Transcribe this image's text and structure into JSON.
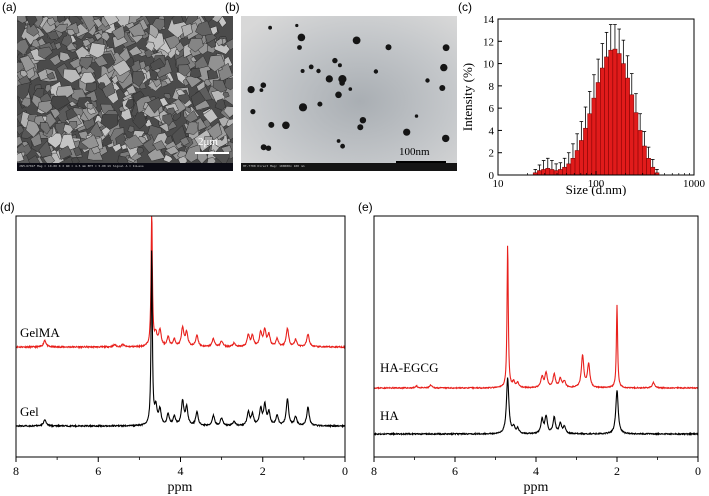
{
  "panels": {
    "a": {
      "label": "(a)",
      "scalebar": "2μm"
    },
    "b": {
      "label": "(b)",
      "scalebar": "100nm"
    },
    "c": {
      "label": "(c)"
    },
    "d": {
      "label": "(d)"
    },
    "e": {
      "label": "(e)"
    }
  },
  "sem_info": {
    "text": "JSM-6701F  Mag = 10.00 K X  WD = 4.5 mm  EHT = 5.00 kV  Signal A = InLens"
  },
  "tem_info": {
    "text": "HT-7700  Direct Mag: 100000x  100 nm"
  },
  "colors": {
    "red": "#e8201c",
    "black": "#000000",
    "bar_fill": "#e11b1b"
  },
  "chart_data": [
    {
      "panel": "c",
      "type": "bar",
      "title": "",
      "xlabel": "Size (d.nm)",
      "ylabel": "Intensity (%)",
      "xscale": "log",
      "xlim": [
        10,
        1000
      ],
      "ylim": [
        0,
        14
      ],
      "x_ticks": [
        "10",
        "100",
        "1000"
      ],
      "y_ticks": [
        "0",
        "2",
        "4",
        "6",
        "8",
        "10",
        "12",
        "14"
      ],
      "x": [
        24,
        26.5,
        29.2,
        32.2,
        35.5,
        39.2,
        43.3,
        47.8,
        52.7,
        58.2,
        64.2,
        70.9,
        78.2,
        86.3,
        95.3,
        105.2,
        116.1,
        128.1,
        141.4,
        156.1,
        172.3,
        190.2,
        209.9,
        231.7,
        255.7,
        282.2,
        311.5,
        343.8,
        379.5,
        418.8
      ],
      "values": [
        0.2,
        0.4,
        0.5,
        0.6,
        0.5,
        0.4,
        0.5,
        0.7,
        1.0,
        1.5,
        2.2,
        3.1,
        4.2,
        5.5,
        6.9,
        8.3,
        9.6,
        10.6,
        11.2,
        11.3,
        10.9,
        10.0,
        8.7,
        7.2,
        5.6,
        4.0,
        2.6,
        1.5,
        0.7,
        0.2
      ],
      "errors": [
        0.3,
        0.5,
        0.8,
        0.9,
        0.8,
        0.6,
        0.6,
        0.8,
        1.0,
        1.3,
        1.5,
        1.7,
        1.9,
        2.0,
        2.1,
        2.1,
        2.2,
        2.2,
        2.3,
        2.2,
        2.2,
        2.1,
        2.0,
        1.9,
        1.7,
        1.5,
        1.3,
        1.0,
        0.7,
        0.3
      ]
    },
    {
      "panel": "d",
      "type": "line",
      "xlabel": "ppm",
      "xlim": [
        8,
        0
      ],
      "x_ticks": [
        "8",
        "6",
        "4",
        "2",
        "0"
      ],
      "series": [
        {
          "name": "GelMA",
          "color": "#e8201c",
          "peaks": [
            [
              7.3,
              0.3
            ],
            [
              5.6,
              0.1
            ],
            [
              5.4,
              0.1
            ],
            [
              4.7,
              6.0
            ],
            [
              4.6,
              0.5
            ],
            [
              4.5,
              0.7
            ],
            [
              4.3,
              0.4
            ],
            [
              4.15,
              0.3
            ],
            [
              3.95,
              0.8
            ],
            [
              3.85,
              0.6
            ],
            [
              3.6,
              0.5
            ],
            [
              3.2,
              0.35
            ],
            [
              3.0,
              0.25
            ],
            [
              2.7,
              0.15
            ],
            [
              2.35,
              0.5
            ],
            [
              2.25,
              0.45
            ],
            [
              2.05,
              0.6
            ],
            [
              1.95,
              0.7
            ],
            [
              1.85,
              0.5
            ],
            [
              1.65,
              0.35
            ],
            [
              1.4,
              0.8
            ],
            [
              1.2,
              0.3
            ],
            [
              0.9,
              0.55
            ]
          ]
        },
        {
          "name": "Gel",
          "color": "#000000",
          "peaks": [
            [
              7.3,
              0.3
            ],
            [
              4.7,
              8.0
            ],
            [
              4.6,
              0.8
            ],
            [
              4.5,
              0.7
            ],
            [
              4.3,
              0.5
            ],
            [
              4.15,
              0.4
            ],
            [
              3.95,
              1.1
            ],
            [
              3.85,
              0.8
            ],
            [
              3.6,
              0.6
            ],
            [
              3.2,
              0.45
            ],
            [
              3.0,
              0.35
            ],
            [
              2.7,
              0.2
            ],
            [
              2.35,
              0.6
            ],
            [
              2.25,
              0.5
            ],
            [
              2.05,
              0.75
            ],
            [
              1.95,
              0.9
            ],
            [
              1.85,
              0.6
            ],
            [
              1.65,
              0.45
            ],
            [
              1.4,
              1.2
            ],
            [
              1.2,
              0.4
            ],
            [
              0.9,
              0.85
            ]
          ]
        }
      ]
    },
    {
      "panel": "e",
      "type": "line",
      "xlabel": "ppm",
      "xlim": [
        8,
        0
      ],
      "x_ticks": [
        "8",
        "6",
        "4",
        "2",
        "0"
      ],
      "series": [
        {
          "name": "HA-EGCG",
          "color": "#e8201c",
          "peaks": [
            [
              6.95,
              0.1
            ],
            [
              6.6,
              0.15
            ],
            [
              4.7,
              8.0
            ],
            [
              4.55,
              0.3
            ],
            [
              4.45,
              0.25
            ],
            [
              3.85,
              0.6
            ],
            [
              3.75,
              0.8
            ],
            [
              3.55,
              0.75
            ],
            [
              3.4,
              0.5
            ],
            [
              3.3,
              0.35
            ],
            [
              2.85,
              1.8
            ],
            [
              2.7,
              1.3
            ],
            [
              2.0,
              4.6
            ],
            [
              1.1,
              0.3
            ]
          ]
        },
        {
          "name": "HA",
          "color": "#000000",
          "peaks": [
            [
              4.7,
              2.8
            ],
            [
              4.55,
              0.3
            ],
            [
              4.45,
              0.25
            ],
            [
              3.85,
              0.7
            ],
            [
              3.75,
              0.85
            ],
            [
              3.55,
              0.8
            ],
            [
              3.4,
              0.5
            ],
            [
              3.3,
              0.35
            ],
            [
              2.0,
              2.2
            ]
          ]
        }
      ]
    }
  ]
}
